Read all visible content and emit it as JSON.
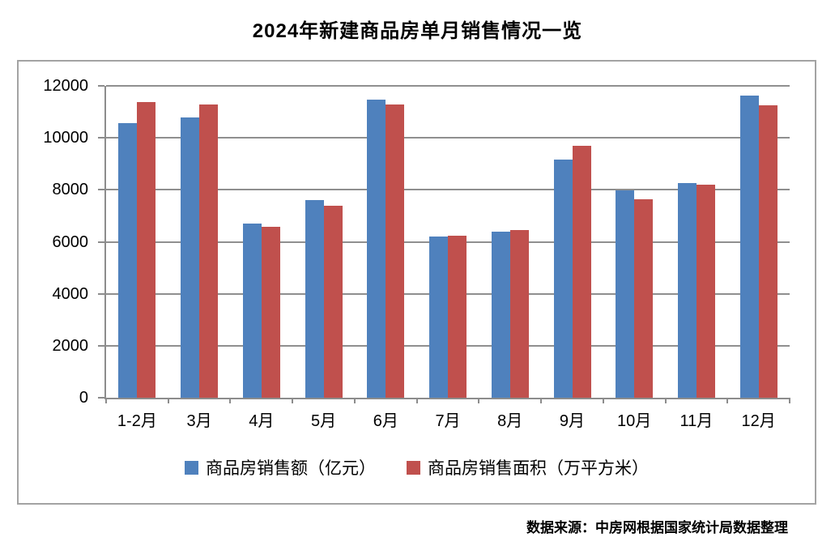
{
  "page": {
    "title": "2024年新建商品房单月销售情况一览",
    "source_note": "数据来源：中房网根据国家统计局数据整理"
  },
  "colors": {
    "series_blue": "#4F81BD",
    "series_red": "#C0504D",
    "gridline": "#8F8F8F",
    "axis": "#8C8C8C",
    "frame_border": "#A3A3A3",
    "text": "#000000"
  },
  "chart_data": {
    "type": "bar",
    "title": "2024年新建商品房单月销售情况一览",
    "categories": [
      "1-2月",
      "3月",
      "4月",
      "5月",
      "6月",
      "7月",
      "8月",
      "9月",
      "10月",
      "11月",
      "12月"
    ],
    "series": [
      {
        "name": "商品房销售额（亿元）",
        "color": "#4F81BD",
        "values": [
          10566,
          10789,
          6712,
          7598,
          11468,
          6197,
          6393,
          9157,
          7975,
          8270,
          11625
        ]
      },
      {
        "name": "商品房销售面积（万平方米）",
        "color": "#C0504D",
        "values": [
          11369,
          11299,
          6584,
          7390,
          11274,
          6233,
          6453,
          9682,
          7646,
          8188,
          11267
        ]
      }
    ],
    "xlabel": "",
    "ylabel": "",
    "ylim": [
      0,
      12000
    ],
    "ytick_step": 2000,
    "grid": true,
    "legend_position": "bottom",
    "source": "数据来源：中房网根据国家统计局数据整理"
  }
}
